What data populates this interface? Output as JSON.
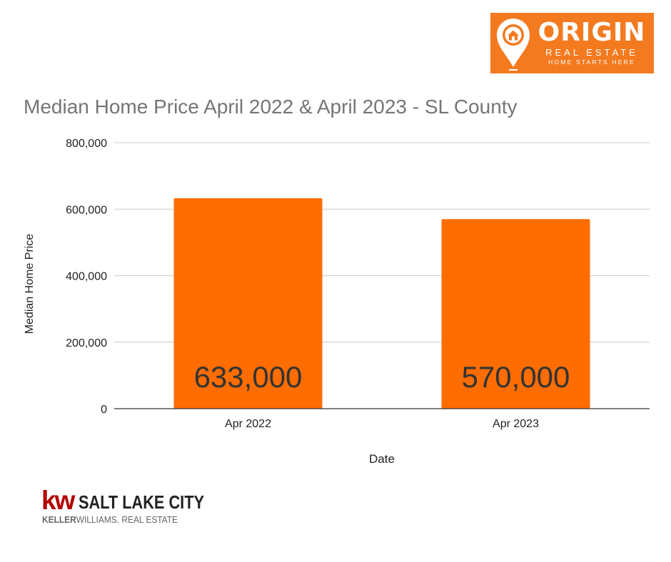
{
  "brand": {
    "origin_name": "ORIGIN",
    "origin_sub": "REAL ESTATE",
    "origin_tag": "HOME STARTS HERE",
    "origin_color": "#f47a20",
    "kw_mark": "kw",
    "kw_city": "SALT LAKE CITY",
    "kw_line_bold": "KELLER",
    "kw_line_rest": "WILLIAMS. REAL ESTATE",
    "kw_color": "#b40101"
  },
  "chart_data": {
    "type": "bar",
    "title": "Median Home Price April 2022 & April 2023 - SL County",
    "xlabel": "Date",
    "ylabel": "Median Home Price",
    "categories": [
      "Apr 2022",
      "Apr 2023"
    ],
    "values": [
      633000,
      570000
    ],
    "data_labels": [
      "633,000",
      "570,000"
    ],
    "ylim": [
      0,
      800000
    ],
    "yticks": [
      0,
      200000,
      400000,
      600000,
      800000
    ],
    "ytick_labels": [
      "0",
      "200,000",
      "400,000",
      "600,000",
      "800,000"
    ],
    "grid": true,
    "bar_color": "#ff6d01"
  }
}
